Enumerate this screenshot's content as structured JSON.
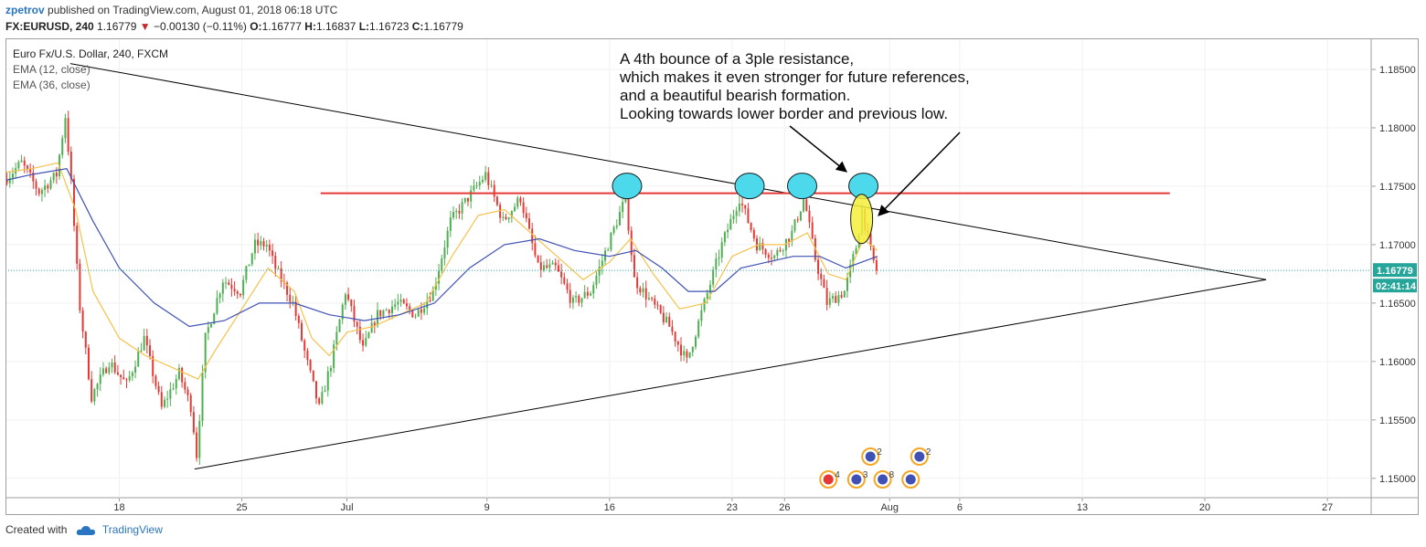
{
  "header": {
    "author": "zpetrov",
    "published": "published on TradingView.com, August 01, 2018 06:18 UTC",
    "symbol": "FX:EURUSD, 240",
    "last": "1.16779",
    "change": "−0.00130 (−0.11%)",
    "open_label": "O:",
    "open": "1.16777",
    "high_label": "H:",
    "high": "1.16837",
    "low_label": "L:",
    "low": "1.16723",
    "close_label": "C:",
    "close": "1.16779"
  },
  "legend": [
    "Euro Fx/U.S. Dollar, 240, FXCM",
    "EMA (12, close)",
    "EMA (36, close)"
  ],
  "footer": {
    "created_with": "Created with",
    "brand": "TradingView"
  },
  "chart_data": {
    "type": "candlestick",
    "instrument": "EURUSD",
    "timeframe": "240",
    "ylim": [
      1.1485,
      1.1875
    ],
    "y_ticks": [
      "1.15000",
      "1.15500",
      "1.16000",
      "1.16500",
      "1.17000",
      "1.17500",
      "1.18000",
      "1.18500"
    ],
    "x_tick_labels": [
      "18",
      "25",
      "Jul",
      "9",
      "16",
      "23",
      "26",
      "Aug",
      "6",
      "13",
      "20",
      "27"
    ],
    "x_tick_days": [
      18,
      25,
      31,
      39,
      46,
      53,
      56,
      62,
      66,
      73,
      80,
      87
    ],
    "x_range_days": [
      11.5,
      89.5
    ],
    "day_axis_note": "June 1 = day 1, July 1 = day 31, Aug 1 = day 62",
    "current_price": "1.16779",
    "countdown": "02:41:14",
    "colors": {
      "up": "#4caf50",
      "down": "#e53935",
      "ema12": "#f5c14b",
      "ema36": "#3f51b5",
      "resistance": "#e53935",
      "price_line": "#26a69a"
    },
    "resistance_level": 1.1744,
    "resistance_days": [
      29.5,
      78
    ],
    "triangle_apex": {
      "day": 83.5,
      "price": 1.167
    },
    "triangle_upper_start": {
      "day": 15.2,
      "price": 1.1855
    },
    "triangle_lower_start": {
      "day": 22.3,
      "price": 1.1508
    },
    "bounce_days": [
      47,
      54,
      57,
      60.5
    ],
    "annotation": [
      "A 4th bounce of a 3ple resistance,",
      "which makes it even stronger for future references,",
      "and a beautiful bearish formation.",
      "Looking towards lower border and previous low."
    ],
    "event_badges": [
      {
        "day": 60.9,
        "count": "2"
      },
      {
        "day": 63.7,
        "count": "2"
      },
      {
        "day": 58.5,
        "count": "4"
      },
      {
        "day": 60.1,
        "count": "3"
      },
      {
        "day": 61.6,
        "count": "8"
      },
      {
        "day": 63.2,
        "count": ""
      }
    ],
    "anchors": [
      [
        11.5,
        1.1755
      ],
      [
        12.5,
        1.177
      ],
      [
        13.5,
        1.1745
      ],
      [
        14.5,
        1.176
      ],
      [
        15.0,
        1.181
      ],
      [
        15.3,
        1.176
      ],
      [
        15.8,
        1.165
      ],
      [
        16.5,
        1.157
      ],
      [
        17.5,
        1.16
      ],
      [
        18.5,
        1.158
      ],
      [
        19.5,
        1.162
      ],
      [
        20.5,
        1.156
      ],
      [
        21.5,
        1.159
      ],
      [
        22.2,
        1.156
      ],
      [
        22.5,
        1.152
      ],
      [
        23.0,
        1.162
      ],
      [
        24.0,
        1.167
      ],
      [
        25.0,
        1.166
      ],
      [
        25.8,
        1.17
      ],
      [
        26.5,
        1.17
      ],
      [
        27.0,
        1.168
      ],
      [
        28.0,
        1.165
      ],
      [
        28.8,
        1.16
      ],
      [
        29.5,
        1.156
      ],
      [
        30.2,
        1.16
      ],
      [
        31.0,
        1.166
      ],
      [
        32.0,
        1.161
      ],
      [
        32.8,
        1.164
      ],
      [
        34.0,
        1.165
      ],
      [
        35.0,
        1.164
      ],
      [
        36.0,
        1.166
      ],
      [
        37.0,
        1.172
      ],
      [
        38.0,
        1.174
      ],
      [
        39.0,
        1.176
      ],
      [
        40.0,
        1.172
      ],
      [
        41.0,
        1.174
      ],
      [
        42.0,
        1.168
      ],
      [
        43.0,
        1.168
      ],
      [
        44.0,
        1.165
      ],
      [
        45.0,
        1.166
      ],
      [
        46.0,
        1.17
      ],
      [
        47.0,
        1.174
      ],
      [
        47.5,
        1.167
      ],
      [
        48.5,
        1.165
      ],
      [
        49.5,
        1.163
      ],
      [
        50.5,
        1.16
      ],
      [
        51.5,
        1.165
      ],
      [
        52.5,
        1.17
      ],
      [
        53.5,
        1.174
      ],
      [
        54.5,
        1.17
      ],
      [
        55.5,
        1.169
      ],
      [
        56.5,
        1.171
      ],
      [
        57.2,
        1.174
      ],
      [
        57.8,
        1.169
      ],
      [
        58.5,
        1.165
      ],
      [
        59.5,
        1.166
      ],
      [
        60.2,
        1.17
      ],
      [
        60.5,
        1.173
      ],
      [
        60.9,
        1.17
      ],
      [
        61.3,
        1.1678
      ]
    ],
    "ema12_points": [
      [
        11.5,
        1.1762
      ],
      [
        13.0,
        1.1765
      ],
      [
        14.5,
        1.177
      ],
      [
        15.5,
        1.173
      ],
      [
        16.5,
        1.166
      ],
      [
        18.0,
        1.162
      ],
      [
        19.5,
        1.1605
      ],
      [
        21.0,
        1.1595
      ],
      [
        22.5,
        1.1585
      ],
      [
        23.5,
        1.161
      ],
      [
        25.0,
        1.1645
      ],
      [
        26.5,
        1.168
      ],
      [
        28.0,
        1.166
      ],
      [
        29.0,
        1.162
      ],
      [
        30.0,
        1.1605
      ],
      [
        31.0,
        1.1625
      ],
      [
        32.5,
        1.163
      ],
      [
        34.0,
        1.164
      ],
      [
        35.5,
        1.165
      ],
      [
        37.0,
        1.169
      ],
      [
        38.5,
        1.1725
      ],
      [
        40.0,
        1.173
      ],
      [
        41.5,
        1.171
      ],
      [
        43.0,
        1.169
      ],
      [
        44.5,
        1.167
      ],
      [
        46.0,
        1.1685
      ],
      [
        47.2,
        1.1705
      ],
      [
        48.5,
        1.1675
      ],
      [
        50.0,
        1.1645
      ],
      [
        51.5,
        1.165
      ],
      [
        53.0,
        1.169
      ],
      [
        54.5,
        1.17
      ],
      [
        56.0,
        1.17
      ],
      [
        57.3,
        1.171
      ],
      [
        58.5,
        1.1675
      ],
      [
        59.5,
        1.167
      ],
      [
        60.5,
        1.1705
      ],
      [
        61.3,
        1.1695
      ]
    ],
    "ema36_points": [
      [
        11.5,
        1.1755
      ],
      [
        13.0,
        1.176
      ],
      [
        15.0,
        1.1765
      ],
      [
        16.5,
        1.172
      ],
      [
        18.0,
        1.168
      ],
      [
        20.0,
        1.165
      ],
      [
        22.0,
        1.163
      ],
      [
        24.0,
        1.1635
      ],
      [
        26.0,
        1.165
      ],
      [
        28.0,
        1.165
      ],
      [
        30.0,
        1.164
      ],
      [
        32.0,
        1.1635
      ],
      [
        34.0,
        1.164
      ],
      [
        36.0,
        1.165
      ],
      [
        38.0,
        1.168
      ],
      [
        40.0,
        1.17
      ],
      [
        42.0,
        1.1705
      ],
      [
        44.0,
        1.1695
      ],
      [
        46.0,
        1.169
      ],
      [
        47.5,
        1.1695
      ],
      [
        49.0,
        1.168
      ],
      [
        50.5,
        1.166
      ],
      [
        52.0,
        1.166
      ],
      [
        53.5,
        1.168
      ],
      [
        55.0,
        1.1685
      ],
      [
        56.5,
        1.169
      ],
      [
        58.0,
        1.169
      ],
      [
        59.5,
        1.168
      ],
      [
        61.3,
        1.169
      ]
    ]
  }
}
